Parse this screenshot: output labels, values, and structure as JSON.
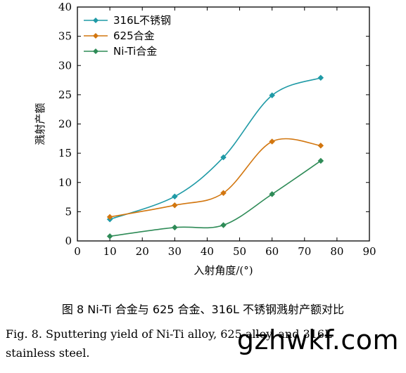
{
  "chart_data": {
    "type": "line",
    "xlabel": "入射角度/(°)",
    "ylabel": "溅射产额",
    "xlim": [
      0,
      90
    ],
    "ylim": [
      0,
      40
    ],
    "xticks": [
      0,
      10,
      20,
      30,
      40,
      50,
      60,
      70,
      80,
      90
    ],
    "yticks": [
      0,
      5,
      10,
      15,
      20,
      25,
      30,
      35,
      40
    ],
    "grid": false,
    "legend_position": "top-left",
    "x": [
      10,
      30,
      45,
      60,
      75
    ],
    "series": [
      {
        "name": "316L不锈钢",
        "values": [
          3.7,
          7.6,
          14.3,
          24.9,
          27.9
        ],
        "color": "#1f9aa6",
        "marker": "diamond"
      },
      {
        "name": "625合金",
        "values": [
          4.1,
          6.1,
          8.2,
          17.0,
          16.3
        ],
        "color": "#d2760f",
        "marker": "diamond"
      },
      {
        "name": "Ni-Ti合金",
        "values": [
          0.8,
          2.3,
          2.7,
          8.0,
          13.7
        ],
        "color": "#2e8b57",
        "marker": "diamond"
      }
    ]
  },
  "caption": {
    "chinese": "图 8   Ni-Ti 合金与 625 合金、316L 不锈钢溅射产额对比",
    "english_line1": "Fig. 8. Sputtering yield of Ni-Ti alloy, 625 alloy, and 316L",
    "english_line2": "stainless steel."
  },
  "watermark": "gzhwkf.com"
}
